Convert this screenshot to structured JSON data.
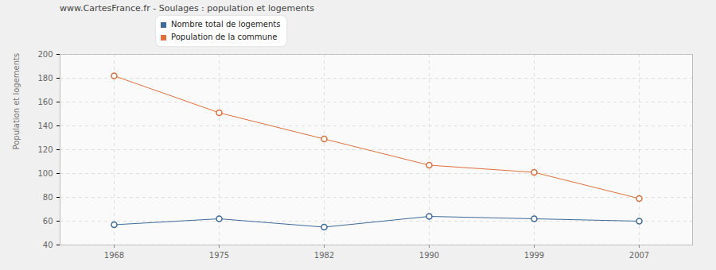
{
  "chart_data": {
    "type": "line",
    "title": "www.CartesFrance.fr - Soulages : population et logements",
    "y_label": "Population et logements",
    "categories": [
      "1968",
      "1975",
      "1982",
      "1990",
      "1999",
      "2007"
    ],
    "series": [
      {
        "name": "Nombre total de logements",
        "color": "#3d6a9a",
        "values": [
          57,
          62,
          55,
          64,
          62,
          60
        ],
        "marker": "circle"
      },
      {
        "name": "Population de la commune",
        "color": "#e0703c",
        "values": [
          182,
          151,
          129,
          107,
          101,
          79
        ],
        "marker": "circle"
      }
    ],
    "ylim": [
      40,
      200
    ],
    "yticks": [
      40,
      60,
      80,
      100,
      120,
      140,
      160,
      180,
      200
    ],
    "grid": true,
    "legend": "top"
  }
}
